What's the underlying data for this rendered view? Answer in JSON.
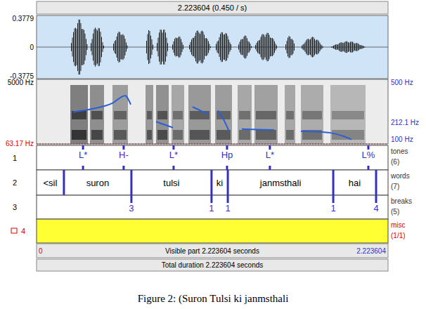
{
  "header": {
    "title": "2.223604 (0.450 / s)"
  },
  "time": {
    "xlim": [
      0,
      2.223604
    ]
  },
  "waveform": {
    "ylim": [
      -0.3775,
      0.3779
    ],
    "yticks": [
      0.3779,
      0,
      -0.3775
    ]
  },
  "spectrogram": {
    "ylim": [
      63.17,
      5000
    ],
    "yticks": [
      {
        "value": 5000,
        "label": "5000 Hz"
      },
      {
        "value": 63.17,
        "label": "63.17 Hz"
      }
    ]
  },
  "chart_data": {
    "type": "line",
    "xlim": [
      0,
      2.223604
    ],
    "ylim": [
      65,
      500
    ],
    "yticks": [
      {
        "value": 500,
        "label": "500 Hz"
      },
      {
        "value": 212.1,
        "label": "212.1 Hz"
      },
      {
        "value": 100,
        "label": "100 Hz"
      }
    ],
    "tick_labels": "y",
    "color": "#2a5fd8",
    "x": [
      0.231,
      0.347,
      0.48,
      0.56,
      0.596,
      0.68,
      0.756,
      0.809,
      0.863,
      0.92,
      0.987,
      1.036,
      1.085,
      1.12,
      1.147,
      1.183,
      1.218,
      1.25,
      1.298,
      1.396,
      1.503,
      1.59,
      1.672,
      1.77,
      1.859,
      1.948,
      1.992
    ],
    "values": [
      280,
      300,
      340,
      390,
      330,
      null,
      215,
      195,
      175,
      null,
      315,
      290,
      265,
      null,
      290,
      230,
      150,
      null,
      165,
      162,
      160,
      null,
      150,
      148,
      140,
      115,
      95
    ]
  },
  "tiers": [
    {
      "number": "1",
      "name": "tones",
      "count": "(6)",
      "kind": "point",
      "items": [
        {
          "time": 0.294,
          "label": "L*"
        },
        {
          "time": 0.551,
          "label": "H-"
        },
        {
          "time": 0.867,
          "label": "L*"
        },
        {
          "time": 1.205,
          "label": "Hp"
        },
        {
          "time": 1.476,
          "label": "L*"
        },
        {
          "time": 2.099,
          "label": "L%"
        }
      ]
    },
    {
      "number": "2",
      "name": "words",
      "count": "(7)",
      "kind": "interval",
      "boundaries": [
        0.173,
        0.6,
        1.107,
        1.21,
        1.877,
        2.148
      ],
      "labels": [
        "<sil",
        "suron",
        "tulsi",
        "ki",
        "janmsthali",
        "hai"
      ]
    },
    {
      "number": "3",
      "name": "breaks",
      "count": "(5)",
      "kind": "point",
      "items": [
        {
          "time": 0.6,
          "label": "3"
        },
        {
          "time": 1.107,
          "label": "1"
        },
        {
          "time": 1.21,
          "label": "1"
        },
        {
          "time": 1.877,
          "label": "1"
        },
        {
          "time": 2.148,
          "label": "4"
        }
      ]
    },
    {
      "number": "4",
      "name": "misc",
      "count": "(1/1)",
      "kind": "interval",
      "boundaries": [],
      "labels": []
    }
  ],
  "footer": {
    "visible": "Visible part 2.223604 seconds",
    "total": "Total duration 2.223604 seconds"
  },
  "caption": "Figure 2: (Suron Tulsi ki janmsthali"
}
